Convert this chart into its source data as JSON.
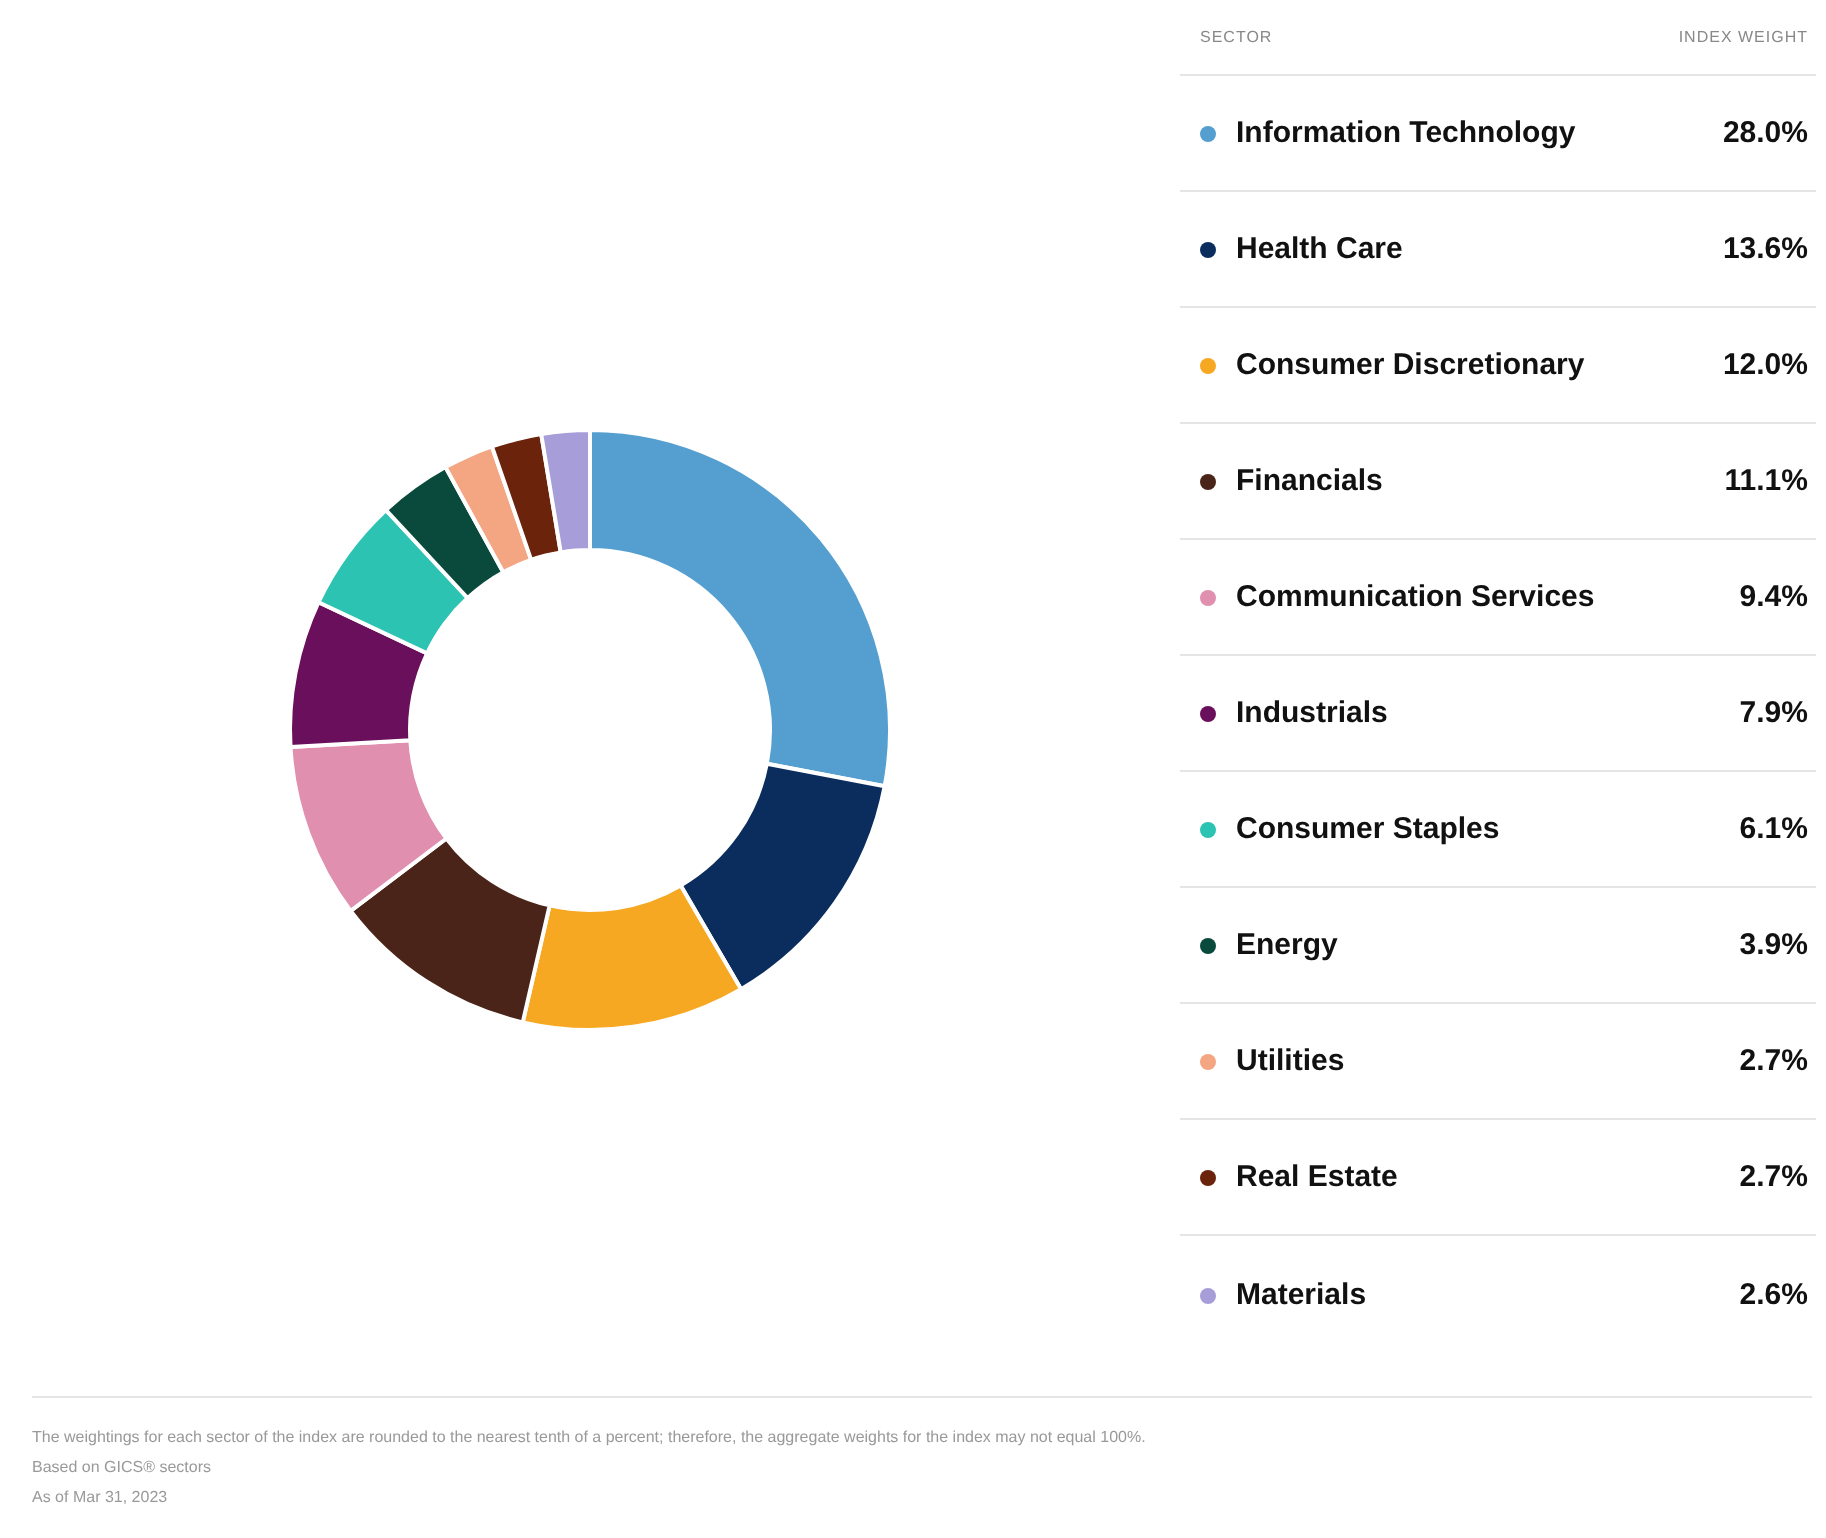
{
  "chart_data": {
    "type": "donut",
    "legend_title": "SECTOR",
    "legend": "right",
    "categories": [
      "Information Technology",
      "Health Care",
      "Consumer Discretionary",
      "Financials",
      "Communication Services",
      "Industrials",
      "Consumer Staples",
      "Energy",
      "Utilities",
      "Real Estate",
      "Materials"
    ],
    "values": [
      28.0,
      13.6,
      12.0,
      11.1,
      9.4,
      7.9,
      6.1,
      3.9,
      2.7,
      2.7,
      2.6
    ],
    "value_labels": [
      "28.0%",
      "13.6%",
      "12.0%",
      "11.1%",
      "9.4%",
      "7.9%",
      "6.1%",
      "3.9%",
      "2.7%",
      "2.7%",
      "2.6%"
    ],
    "colors": [
      "#559fd0",
      "#0b2d5e",
      "#f7a823",
      "#4a2418",
      "#e08fae",
      "#6a0f5c",
      "#2cc3b3",
      "#0a4a3c",
      "#f4a582",
      "#6b230c",
      "#a79ed9"
    ],
    "annotations": [
      "INDEX WEIGHT",
      "The weightings for each sector of the index are rounded to the nearest tenth of a percent; therefore, the aggregate weights for the index may not equal 100%.",
      "Based on GICS® sectors",
      "As of Mar 31, 2023"
    ]
  }
}
